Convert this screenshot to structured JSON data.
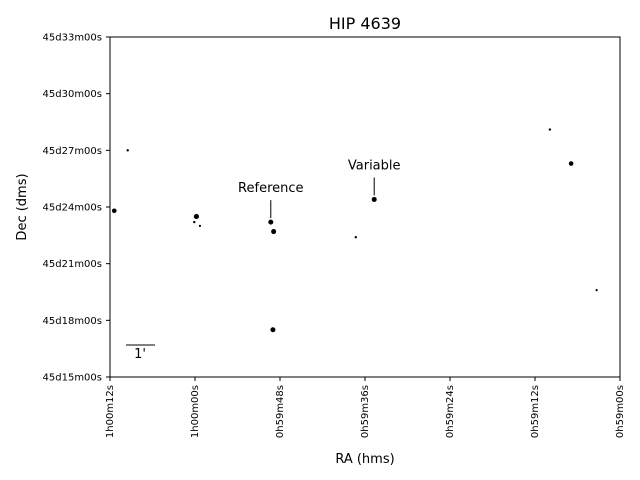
{
  "chart_data": {
    "type": "scatter",
    "title": "HIP 4639",
    "xlabel": "RA (hms)",
    "ylabel": "Dec (dms)",
    "x_unit": "seconds of RA past 0h59m00s",
    "y_unit": "arcminutes of Dec past 45d15m00s",
    "xlim": [
      72,
      0
    ],
    "ylim": [
      0,
      18
    ],
    "x_ticks": [
      {
        "value": 72,
        "label": "1h00m12s"
      },
      {
        "value": 60,
        "label": "1h00m00s"
      },
      {
        "value": 48,
        "label": "0h59m48s"
      },
      {
        "value": 36,
        "label": "0h59m36s"
      },
      {
        "value": 24,
        "label": "0h59m24s"
      },
      {
        "value": 12,
        "label": "0h59m12s"
      },
      {
        "value": 0,
        "label": "0h59m00s"
      }
    ],
    "y_ticks": [
      {
        "value": 0,
        "label": "45d15m00s"
      },
      {
        "value": 3,
        "label": "45d18m00s"
      },
      {
        "value": 6,
        "label": "45d21m00s"
      },
      {
        "value": 9,
        "label": "45d24m00s"
      },
      {
        "value": 12,
        "label": "45d27m00s"
      },
      {
        "value": 15,
        "label": "45d30m00s"
      },
      {
        "value": 18,
        "label": "45d33m00s"
      }
    ],
    "points": [
      {
        "x": 71.4,
        "y": 8.8,
        "size": 2.3
      },
      {
        "x": 69.5,
        "y": 12.0,
        "size": 1.2
      },
      {
        "x": 59.8,
        "y": 8.5,
        "size": 2.6
      },
      {
        "x": 60.1,
        "y": 8.2,
        "size": 1.2
      },
      {
        "x": 59.3,
        "y": 8.0,
        "size": 1.1
      },
      {
        "x": 49.3,
        "y": 8.2,
        "size": 2.5
      },
      {
        "x": 48.9,
        "y": 7.7,
        "size": 2.5
      },
      {
        "x": 49.0,
        "y": 2.5,
        "size": 2.5
      },
      {
        "x": 37.3,
        "y": 7.4,
        "size": 1.2
      },
      {
        "x": 34.7,
        "y": 9.4,
        "size": 2.5
      },
      {
        "x": 9.9,
        "y": 13.1,
        "size": 1.2
      },
      {
        "x": 6.9,
        "y": 11.3,
        "size": 2.3
      },
      {
        "x": 3.3,
        "y": 4.6,
        "size": 1.1
      }
    ],
    "annotations": [
      {
        "text": "Reference",
        "x": 49.3,
        "y": 8.2
      },
      {
        "text": "Variable",
        "x": 34.7,
        "y": 9.4
      }
    ],
    "scale_bar": {
      "label": "1'"
    },
    "grid": false
  }
}
